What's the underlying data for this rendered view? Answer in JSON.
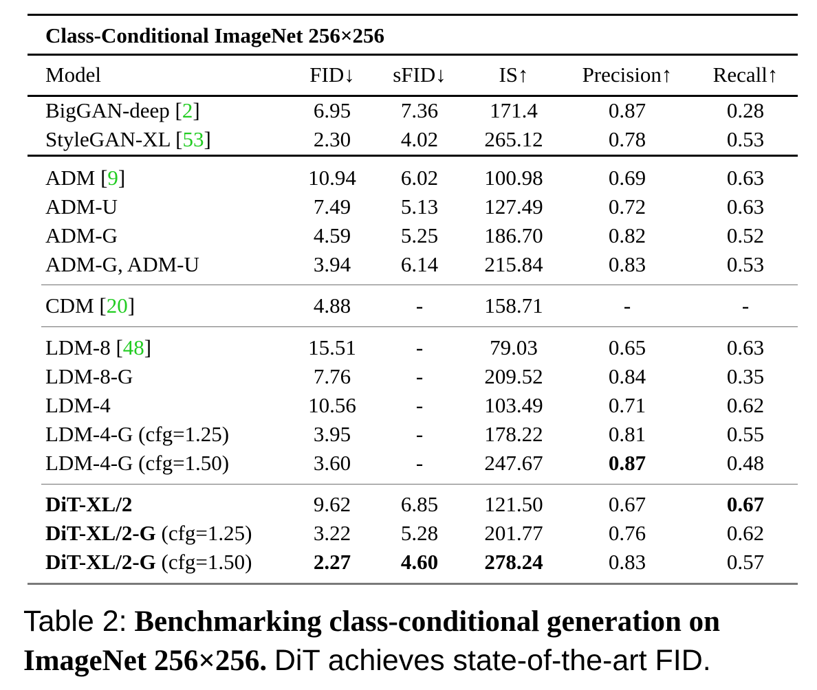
{
  "table": {
    "title": "Class-Conditional ImageNet 256×256",
    "columns": [
      "Model",
      "FID↓",
      "sFID↓",
      "IS↑",
      "Precision↑",
      "Recall↑"
    ],
    "rows": [
      {
        "model": "BigGAN-deep",
        "cite": "2",
        "fid": "6.95",
        "sfid": "7.36",
        "is": "171.4",
        "precision": "0.87",
        "recall": "0.28"
      },
      {
        "model": "StyleGAN-XL",
        "cite": "53",
        "fid": "2.30",
        "sfid": "4.02",
        "is": "265.12",
        "precision": "0.78",
        "recall": "0.53"
      },
      {
        "model": "ADM",
        "cite": "9",
        "fid": "10.94",
        "sfid": "6.02",
        "is": "100.98",
        "precision": "0.69",
        "recall": "0.63"
      },
      {
        "model": "ADM-U",
        "fid": "7.49",
        "sfid": "5.13",
        "is": "127.49",
        "precision": "0.72",
        "recall": "0.63"
      },
      {
        "model": "ADM-G",
        "fid": "4.59",
        "sfid": "5.25",
        "is": "186.70",
        "precision": "0.82",
        "recall": "0.52"
      },
      {
        "model": "ADM-G, ADM-U",
        "fid": "3.94",
        "sfid": "6.14",
        "is": "215.84",
        "precision": "0.83",
        "recall": "0.53"
      },
      {
        "model": "CDM",
        "cite": "20",
        "fid": "4.88",
        "sfid": "-",
        "is": "158.71",
        "precision": "-",
        "recall": "-"
      },
      {
        "model": "LDM-8",
        "cite": "48",
        "fid": "15.51",
        "sfid": "-",
        "is": "79.03",
        "precision": "0.65",
        "recall": "0.63"
      },
      {
        "model": "LDM-8-G",
        "fid": "7.76",
        "sfid": "-",
        "is": "209.52",
        "precision": "0.84",
        "recall": "0.35"
      },
      {
        "model": "LDM-4",
        "fid": "10.56",
        "sfid": "-",
        "is": "103.49",
        "precision": "0.71",
        "recall": "0.62"
      },
      {
        "model": "LDM-4-G (cfg=1.25)",
        "fid": "3.95",
        "sfid": "-",
        "is": "178.22",
        "precision": "0.81",
        "recall": "0.55"
      },
      {
        "model": "LDM-4-G (cfg=1.50)",
        "fid": "3.60",
        "sfid": "-",
        "is": "247.67",
        "precision": "0.87",
        "recall": "0.48",
        "bold": [
          "precision"
        ]
      },
      {
        "model": "DiT-XL/2",
        "model_bold": true,
        "fid": "9.62",
        "sfid": "6.85",
        "is": "121.50",
        "precision": "0.67",
        "recall": "0.67",
        "bold": [
          "recall"
        ]
      },
      {
        "model": "DiT-XL/2-G",
        "cfg": "(cfg=1.25)",
        "model_bold": true,
        "fid": "3.22",
        "sfid": "5.28",
        "is": "201.77",
        "precision": "0.76",
        "recall": "0.62"
      },
      {
        "model": "DiT-XL/2-G",
        "cfg": "(cfg=1.50)",
        "model_bold": true,
        "fid": "2.27",
        "sfid": "4.60",
        "is": "278.24",
        "precision": "0.83",
        "recall": "0.57",
        "bold": [
          "fid",
          "sfid",
          "is"
        ]
      }
    ]
  },
  "caption": {
    "label": "Table 2:",
    "bold_text": "Benchmarking class-conditional generation on ImageNet 256×256.",
    "rest_text": "DiT achieves state-of-the-art FID."
  }
}
